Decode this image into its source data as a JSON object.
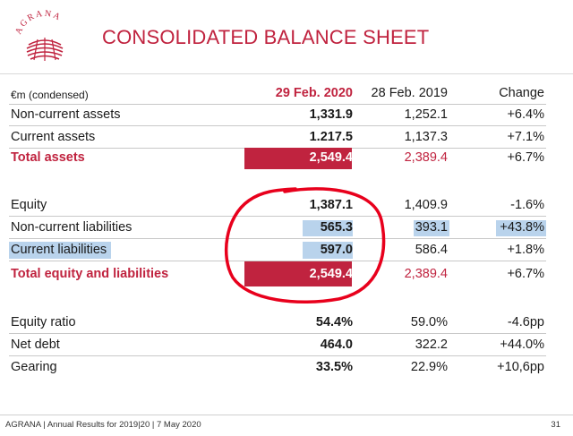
{
  "logo": {
    "text": "AGRANA",
    "color": "#c0233f"
  },
  "title": "CONSOLIDATED BALANCE SHEET",
  "header": {
    "label": "€m (condensed)",
    "col1": "29 Feb. 2020",
    "col2": "28 Feb. 2019",
    "col3": "Change"
  },
  "rows": [
    {
      "label": "Non-current assets",
      "c1": "1,331.9",
      "c2": "1,252.1",
      "c3": "+6.4%"
    },
    {
      "label": "Current assets",
      "c1": "1.217.5",
      "c2": "1,137.3",
      "c3": "+7.1%"
    },
    {
      "label": "Total assets",
      "c1": "2,549.4",
      "c2": "2,389.4",
      "c3": "+6.7%"
    },
    {
      "label": "Equity",
      "c1": "1,387.1",
      "c2": "1,409.9",
      "c3": "-1.6%"
    },
    {
      "label": "Non-current liabilities",
      "c1": "565.3",
      "c2": "393.1",
      "c3": "+43.8%"
    },
    {
      "label": "Current liabilities",
      "c1": "597.0",
      "c2": "586.4",
      "c3": "+1.8%"
    },
    {
      "label": "Total equity and liabilities",
      "c1": "2,549.4",
      "c2": "2,389.4",
      "c3": "+6.7%"
    },
    {
      "label": "Equity ratio",
      "c1": "54.4%",
      "c2": "59.0%",
      "c3": "-4.6pp"
    },
    {
      "label": "Net debt",
      "c1": "464.0",
      "c2": "322.2",
      "c3": "+44.0%"
    },
    {
      "label": "Gearing",
      "c1": "33.5%",
      "c2": "22.9%",
      "c3": "+10,6pp"
    }
  ],
  "colors": {
    "accent": "#c0233f",
    "highlight": "#b9d3ec",
    "annotation": "#e8001c"
  },
  "footer": {
    "text": "AGRANA | Annual Results for 2019|20 | 7 May 2020",
    "page": "31"
  }
}
